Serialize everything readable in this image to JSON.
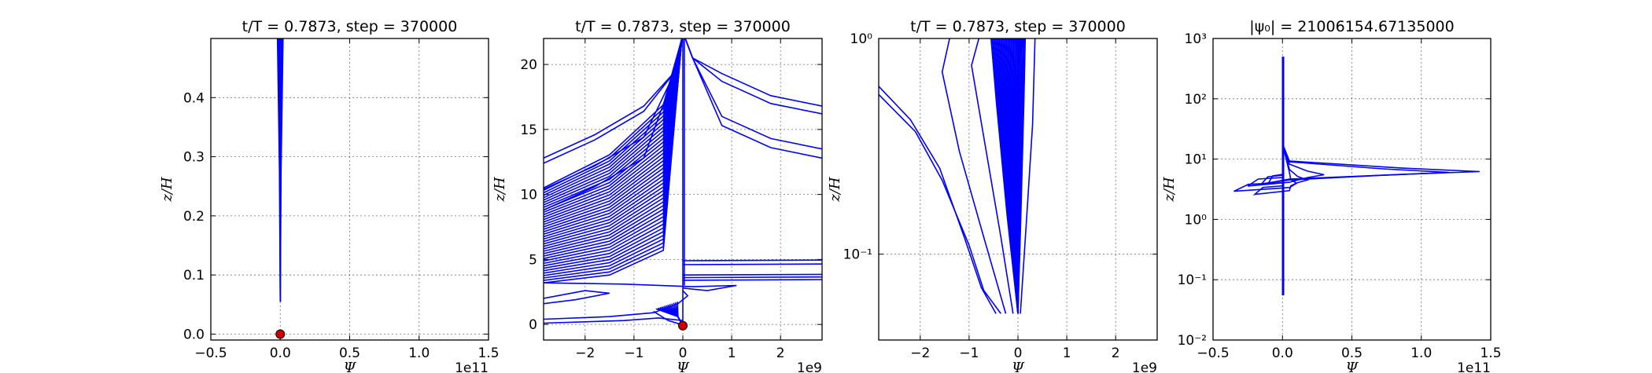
{
  "chart_data": [
    {
      "type": "line",
      "title": "t/T = 0.7873, step = 370000",
      "xlabel": "Ψ",
      "ylabel": "z/H",
      "x_offset_label": "1e11",
      "xlim": [
        -0.5,
        1.5
      ],
      "ylim": [
        -0.01,
        0.5
      ],
      "xticks": [
        "−0.5",
        "0.0",
        "0.5",
        "1.0",
        "1.5"
      ],
      "yticks": [
        "0.0",
        "0.1",
        "0.2",
        "0.3",
        "0.4"
      ],
      "yscale": "linear",
      "grid": true,
      "series_color": "#0000ff",
      "marker": {
        "x": 0.0,
        "y": 0.0,
        "color": "#cc0000"
      },
      "bundle": {
        "x_left": -0.02,
        "x_right": 0.02,
        "y_bottom": 0.055,
        "y_top": 0.5
      }
    },
    {
      "type": "line",
      "title": "t/T = 0.7873, step = 370000",
      "xlabel": "Ψ",
      "ylabel": "z/H",
      "x_offset_label": "1e9",
      "xlim": [
        -2.85,
        2.85
      ],
      "ylim": [
        -1.2,
        22
      ],
      "xticks": [
        "−2",
        "−1",
        "0",
        "1",
        "2"
      ],
      "yticks": [
        "0",
        "5",
        "10",
        "15",
        "20"
      ],
      "yscale": "linear",
      "grid": true,
      "series_color": "#0000ff",
      "marker": {
        "x": 0.0,
        "y": -0.1,
        "color": "#cc0000"
      },
      "upper_curves": [
        {
          "x0": -2.85,
          "y0": 12.8
        },
        {
          "x0": -2.85,
          "y0": 12.4
        },
        {
          "x0": -2.85,
          "y0": 10.4
        },
        {
          "x0": -2.85,
          "y0": 8.8
        }
      ],
      "right_curves": [
        {
          "x1": 2.85,
          "y1": 16.8
        },
        {
          "x1": 2.85,
          "y1": 16.2
        },
        {
          "x1": 2.85,
          "y1": 13.5
        },
        {
          "x1": 2.85,
          "y1": 12.8
        }
      ],
      "horizontal_lines_right": [
        4.9,
        4.6,
        3.8,
        3.6,
        3.4
      ],
      "dense_band": {
        "y_from": 3.2,
        "y_to": 10.5,
        "count": 40
      }
    },
    {
      "type": "line",
      "title": "t/T = 0.7873, step = 370000",
      "xlabel": "Ψ",
      "ylabel": "z/H",
      "x_offset_label": "1e9",
      "xlim": [
        -2.85,
        2.85
      ],
      "ylim": [
        0.04,
        1.0
      ],
      "xticks": [
        "−2",
        "−1",
        "0",
        "1",
        "2"
      ],
      "yticks": [
        "10⁻¹",
        "10⁰"
      ],
      "yscale": "log",
      "grid": true,
      "series_color": "#0000ff",
      "curves": [
        {
          "points": [
            [
              -2.85,
              0.6
            ],
            [
              -2.2,
              0.42
            ],
            [
              -1.6,
              0.25
            ],
            [
              -1.1,
              0.12
            ],
            [
              -0.75,
              0.07
            ],
            [
              -0.45,
              0.053
            ]
          ]
        },
        {
          "points": [
            [
              -2.85,
              0.55
            ],
            [
              -2.1,
              0.37
            ],
            [
              -1.55,
              0.22
            ],
            [
              -1.0,
              0.11
            ],
            [
              -0.7,
              0.068
            ],
            [
              -0.35,
              0.053
            ]
          ]
        },
        {
          "points": [
            [
              -1.4,
              1.0
            ],
            [
              -1.55,
              0.7
            ],
            [
              -1.2,
              0.3
            ],
            [
              -0.7,
              0.12
            ],
            [
              -0.25,
              0.053
            ]
          ]
        },
        {
          "points": [
            [
              -0.8,
              1.0
            ],
            [
              -0.95,
              0.75
            ],
            [
              -0.7,
              0.35
            ],
            [
              -0.35,
              0.12
            ],
            [
              -0.1,
              0.053
            ]
          ]
        },
        {
          "points": [
            [
              0.35,
              1.0
            ],
            [
              0.3,
              0.4
            ],
            [
              0.18,
              0.15
            ],
            [
              0.05,
              0.053
            ]
          ]
        }
      ],
      "dense_band": {
        "x_from": -0.55,
        "x_to": 0.15,
        "y_bottom": 0.053,
        "count": 30
      }
    },
    {
      "type": "line",
      "title": "|ψ₀| = 21006154.67135000",
      "xlabel": "Ψ",
      "ylabel": "z/H",
      "x_offset_label": "1e11",
      "xlim": [
        -0.5,
        1.5
      ],
      "ylim": [
        0.01,
        1000
      ],
      "xticks": [
        "−0.5",
        "0.0",
        "0.5",
        "1.0",
        "1.5"
      ],
      "yticks": [
        "10⁻²",
        "10⁻¹",
        "10⁰",
        "10¹",
        "10²",
        "10³"
      ],
      "yscale": "log",
      "grid": true,
      "series_color": "#0000ff",
      "vertical_stem": {
        "x": 0.0,
        "y_bottom": 0.055,
        "y_top": 500
      },
      "loops": [
        {
          "x_right": 1.42,
          "x_left": -0.1,
          "y_center": 6.2
        },
        {
          "x_right": 1.2,
          "x_left": -0.15,
          "y_center": 6.0
        },
        {
          "x_right": 0.3,
          "x_left": -0.25,
          "y_center": 5.5
        },
        {
          "x_right": 0.18,
          "x_left": -0.35,
          "y_center": 4.5
        },
        {
          "x_right": 0.1,
          "x_left": -0.2,
          "y_center": 4.0
        }
      ]
    }
  ]
}
